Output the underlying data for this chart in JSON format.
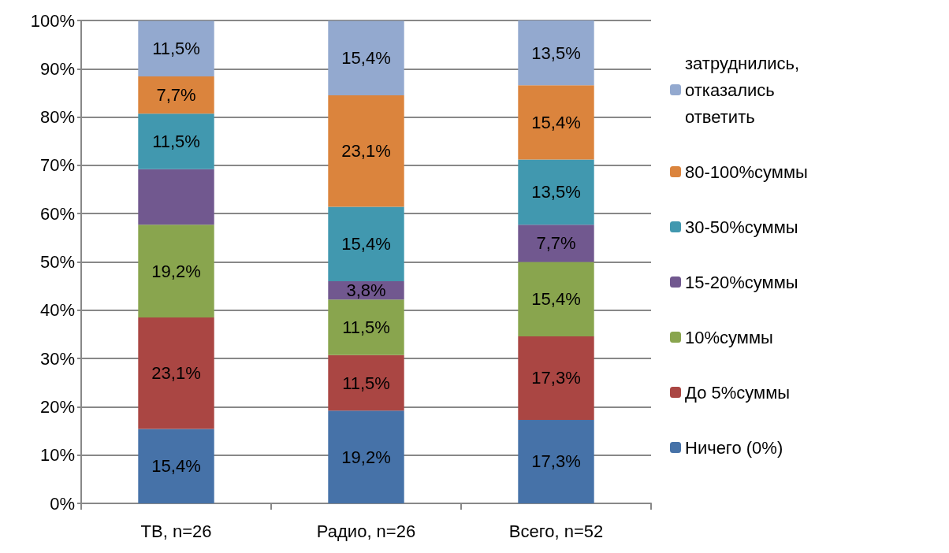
{
  "chart_data": {
    "type": "bar",
    "stacked": true,
    "categories": [
      "ТВ, n=26",
      "Радио, n=26",
      "Всего, n=52"
    ],
    "ylim": [
      0,
      100
    ],
    "yticks": [
      {
        "value": 0,
        "label": "0%"
      },
      {
        "value": 10,
        "label": "10%"
      },
      {
        "value": 20,
        "label": "20%"
      },
      {
        "value": 30,
        "label": "30%"
      },
      {
        "value": 40,
        "label": "40%"
      },
      {
        "value": 50,
        "label": "50%"
      },
      {
        "value": 60,
        "label": "60%"
      },
      {
        "value": 70,
        "label": "70%"
      },
      {
        "value": 80,
        "label": "80%"
      },
      {
        "value": 90,
        "label": "90%"
      },
      {
        "value": 100,
        "label": "100%"
      }
    ],
    "grid": "y",
    "legend": "right",
    "series": [
      {
        "name": "Ничего (0%)",
        "color": "#4672a8",
        "values": [
          15.4,
          19.2,
          17.3
        ],
        "value_labels": [
          "15,4%",
          "19,2%",
          "17,3%"
        ]
      },
      {
        "name": "До 5%суммы",
        "color": "#aa4643",
        "values": [
          23.1,
          11.5,
          17.3
        ],
        "value_labels": [
          "23,1%",
          "11,5%",
          "17,3%"
        ]
      },
      {
        "name": "10%суммы",
        "color": "#89a54e",
        "values": [
          19.2,
          11.5,
          15.4
        ],
        "value_labels": [
          "19,2%",
          "11,5%",
          "15,4%"
        ]
      },
      {
        "name": "15-20%суммы",
        "color": "#71588f",
        "values": [
          11.5,
          3.8,
          7.7
        ],
        "value_labels": [
          null,
          "3,8%",
          "7,7%"
        ]
      },
      {
        "name": "30-50%суммы",
        "color": "#4198af",
        "values": [
          11.5,
          15.4,
          13.5
        ],
        "value_labels": [
          "11,5%",
          "15,4%",
          "13,5%"
        ]
      },
      {
        "name": "80-100%суммы",
        "color": "#db843d",
        "values": [
          7.7,
          23.1,
          15.4
        ],
        "value_labels": [
          "7,7%",
          "23,1%",
          "15,4%"
        ]
      },
      {
        "name": "затруднились, отказались ответить",
        "color": "#93a9cf",
        "values": [
          11.5,
          15.4,
          13.5
        ],
        "value_labels": [
          "11,5%",
          "15,4%",
          "13,5%"
        ]
      }
    ]
  }
}
